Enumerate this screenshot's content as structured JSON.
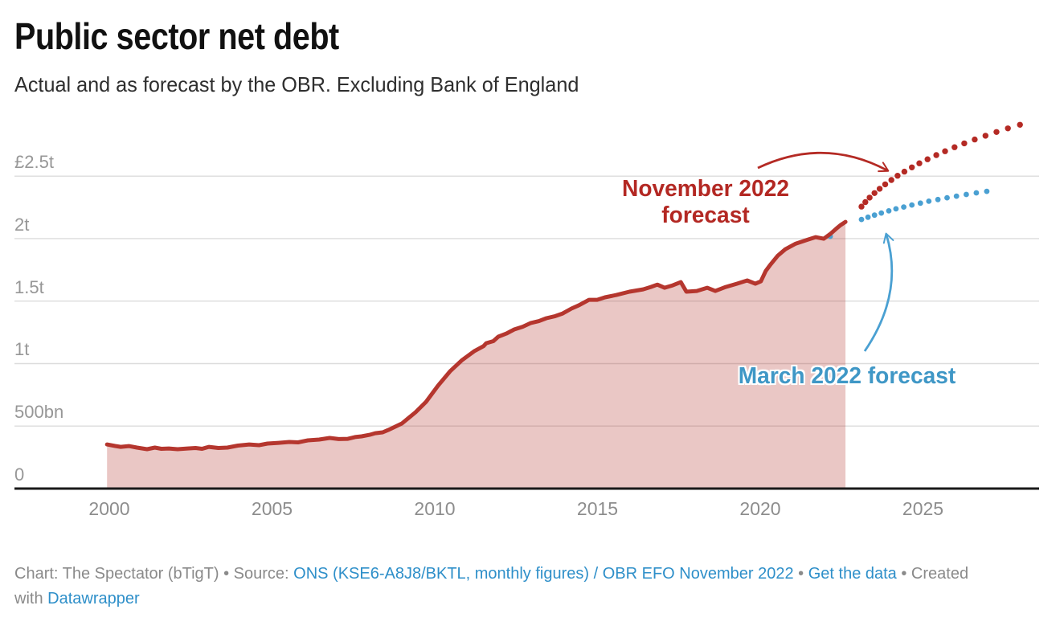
{
  "header": {
    "title": "Public sector net debt",
    "subtitle": "Actual and as forecast by the OBR. Excluding Bank of England"
  },
  "annotations": {
    "november": {
      "line1": "November 2022",
      "line2": "forecast",
      "color": "#b32823"
    },
    "march": {
      "label": "March 2022 forecast",
      "color": "#3f97c6"
    }
  },
  "colors": {
    "actual_line": "#b5362e",
    "actual_fill": "rgba(181,54,46,0.28)",
    "november_dots": "#b42a24",
    "march_dots": "#4aa0d2",
    "gridline": "#dcdcdc",
    "axis_line": "#1a1a1a",
    "link_blue": "#2e8fc9",
    "footer_gray": "#8a8a8a"
  },
  "footer": {
    "segments": [
      {
        "text": "Chart: The Spectator (bTigT) • Source: ",
        "link": false
      },
      {
        "text": "ONS (KSE6-A8J8/BKTL, monthly figures) / OBR EFO November 2022",
        "link": true
      },
      {
        "text": " • ",
        "link": false
      },
      {
        "text": "Get the data",
        "link": true
      },
      {
        "text": " • Created\nwith ",
        "link": false
      },
      {
        "text": "Datawrapper",
        "link": true
      }
    ]
  },
  "chart_data": {
    "type": "area",
    "title": "Public sector net debt",
    "subtitle": "Actual and as forecast by the OBR. Excluding Bank of England",
    "unit": "GBP billions",
    "grid": "horizontal",
    "legend_position": "annotations-on-chart",
    "xlim": [
      1997.1,
      2028.6
    ],
    "ylim": [
      0,
      2950
    ],
    "x_ticks": [
      2000,
      2005,
      2010,
      2015,
      2020,
      2025
    ],
    "y_ticks": [
      {
        "label": "£2.5t",
        "value": 2500
      },
      {
        "label": "2t",
        "value": 2000
      },
      {
        "label": "1.5t",
        "value": 1500
      },
      {
        "label": "1t",
        "value": 1000
      },
      {
        "label": "500bn",
        "value": 500
      },
      {
        "label": "0",
        "value": 0
      }
    ],
    "series": [
      {
        "name": "Actual",
        "style": "line+area",
        "points": [
          [
            1999.93,
            353
          ],
          [
            2000.18,
            341
          ],
          [
            2000.35,
            334
          ],
          [
            2000.6,
            340
          ],
          [
            2000.85,
            328
          ],
          [
            2001.16,
            315
          ],
          [
            2001.4,
            328
          ],
          [
            2001.6,
            318
          ],
          [
            2001.83,
            321
          ],
          [
            2002.1,
            315
          ],
          [
            2002.4,
            321
          ],
          [
            2002.65,
            325
          ],
          [
            2002.85,
            318
          ],
          [
            2003.06,
            334
          ],
          [
            2003.35,
            325
          ],
          [
            2003.63,
            328
          ],
          [
            2003.95,
            344
          ],
          [
            2004.3,
            353
          ],
          [
            2004.6,
            347
          ],
          [
            2004.86,
            360
          ],
          [
            2005.2,
            366
          ],
          [
            2005.53,
            373
          ],
          [
            2005.8,
            370
          ],
          [
            2006.1,
            386
          ],
          [
            2006.45,
            392
          ],
          [
            2006.77,
            405
          ],
          [
            2007.05,
            396
          ],
          [
            2007.33,
            398
          ],
          [
            2007.55,
            412
          ],
          [
            2007.75,
            418
          ],
          [
            2008.0,
            430
          ],
          [
            2008.17,
            443
          ],
          [
            2008.4,
            450
          ],
          [
            2008.57,
            469
          ],
          [
            2008.99,
            521
          ],
          [
            2009.41,
            611
          ],
          [
            2009.73,
            694
          ],
          [
            2010.1,
            823
          ],
          [
            2010.47,
            938
          ],
          [
            2010.84,
            1028
          ],
          [
            2011.21,
            1099
          ],
          [
            2011.5,
            1140
          ],
          [
            2011.58,
            1163
          ],
          [
            2011.8,
            1180
          ],
          [
            2011.95,
            1215
          ],
          [
            2012.2,
            1240
          ],
          [
            2012.44,
            1273
          ],
          [
            2012.7,
            1295
          ],
          [
            2012.94,
            1324
          ],
          [
            2013.2,
            1340
          ],
          [
            2013.43,
            1363
          ],
          [
            2013.7,
            1380
          ],
          [
            2013.93,
            1401
          ],
          [
            2014.2,
            1440
          ],
          [
            2014.42,
            1465
          ],
          [
            2014.74,
            1510
          ],
          [
            2014.99,
            1510
          ],
          [
            2015.23,
            1530
          ],
          [
            2015.58,
            1549
          ],
          [
            2015.98,
            1575
          ],
          [
            2016.4,
            1594
          ],
          [
            2016.64,
            1613
          ],
          [
            2016.84,
            1632
          ],
          [
            2017.06,
            1607
          ],
          [
            2017.31,
            1626
          ],
          [
            2017.56,
            1652
          ],
          [
            2017.73,
            1575
          ],
          [
            2018.05,
            1581
          ],
          [
            2018.37,
            1607
          ],
          [
            2018.62,
            1581
          ],
          [
            2018.94,
            1613
          ],
          [
            2019.28,
            1639
          ],
          [
            2019.6,
            1665
          ],
          [
            2019.85,
            1639
          ],
          [
            2020.02,
            1658
          ],
          [
            2020.17,
            1742
          ],
          [
            2020.3,
            1787
          ],
          [
            2020.54,
            1864
          ],
          [
            2020.77,
            1915
          ],
          [
            2021.09,
            1960
          ],
          [
            2021.46,
            1992
          ],
          [
            2021.7,
            2012
          ],
          [
            2021.95,
            1999
          ],
          [
            2022.15,
            2037
          ],
          [
            2022.32,
            2076
          ],
          [
            2022.47,
            2108
          ],
          [
            2022.62,
            2134
          ]
        ]
      },
      {
        "name": "November 2022 forecast",
        "style": "dots",
        "dot_radius": 3.7,
        "points": [
          [
            2023.11,
            2256
          ],
          [
            2023.23,
            2292
          ],
          [
            2023.36,
            2328
          ],
          [
            2023.51,
            2364
          ],
          [
            2023.67,
            2399
          ],
          [
            2023.84,
            2434
          ],
          [
            2024.03,
            2469
          ],
          [
            2024.22,
            2503
          ],
          [
            2024.43,
            2536
          ],
          [
            2024.66,
            2570
          ],
          [
            2024.89,
            2603
          ],
          [
            2025.14,
            2635
          ],
          [
            2025.41,
            2668
          ],
          [
            2025.68,
            2699
          ],
          [
            2025.97,
            2731
          ],
          [
            2026.27,
            2762
          ],
          [
            2026.59,
            2793
          ],
          [
            2026.92,
            2823
          ],
          [
            2027.26,
            2853
          ],
          [
            2027.61,
            2882
          ],
          [
            2027.98,
            2911
          ]
        ]
      },
      {
        "name": "March 2022 forecast",
        "style": "dots",
        "dot_radius": 3.4,
        "points": [
          [
            2022.15,
            2018
          ],
          [
            2023.11,
            2153
          ],
          [
            2023.31,
            2171
          ],
          [
            2023.51,
            2188
          ],
          [
            2023.72,
            2205
          ],
          [
            2023.95,
            2222
          ],
          [
            2024.17,
            2238
          ],
          [
            2024.41,
            2253
          ],
          [
            2024.66,
            2269
          ],
          [
            2024.92,
            2284
          ],
          [
            2025.18,
            2299
          ],
          [
            2025.46,
            2313
          ],
          [
            2025.74,
            2327
          ],
          [
            2026.03,
            2340
          ],
          [
            2026.33,
            2353
          ],
          [
            2026.64,
            2366
          ],
          [
            2026.96,
            2378
          ]
        ]
      }
    ]
  }
}
